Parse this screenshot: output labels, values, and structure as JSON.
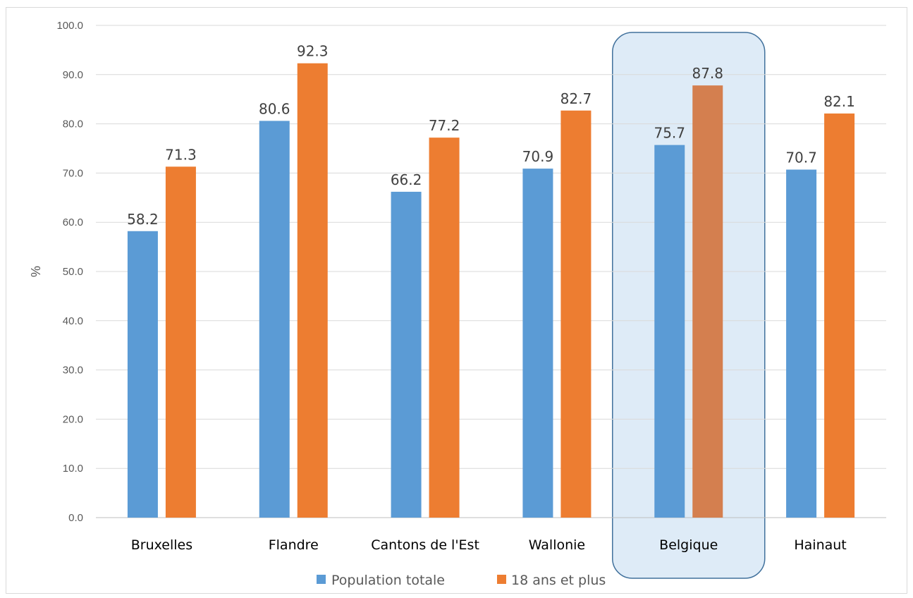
{
  "chart_data": {
    "type": "bar",
    "categories": [
      "Bruxelles",
      "Flandre",
      "Cantons de l'Est",
      "Wallonie",
      "Belgique",
      "Hainaut"
    ],
    "series": [
      {
        "name": "Population totale",
        "values": [
          58.2,
          80.6,
          66.2,
          70.9,
          75.7,
          70.7
        ]
      },
      {
        "name": "18 ans et plus",
        "values": [
          71.3,
          92.3,
          77.2,
          82.7,
          87.8,
          82.1
        ]
      }
    ],
    "title": "",
    "xlabel": "",
    "ylabel": "%",
    "ylim": [
      0,
      100
    ],
    "yticks": [
      "0.0",
      "10.0",
      "20.0",
      "30.0",
      "40.0",
      "50.0",
      "60.0",
      "70.0",
      "80.0",
      "90.0",
      "100.0"
    ],
    "grid": true,
    "legend_position": "bottom",
    "highlighted_category": "Belgique",
    "colors": {
      "series1": "#5b9bd5",
      "series2": "#ed7d31",
      "series2_highlight": "#d47f4f",
      "highlight_fill": "#deebf7",
      "highlight_stroke": "#41719c",
      "grid": "#d9d9d9"
    }
  }
}
